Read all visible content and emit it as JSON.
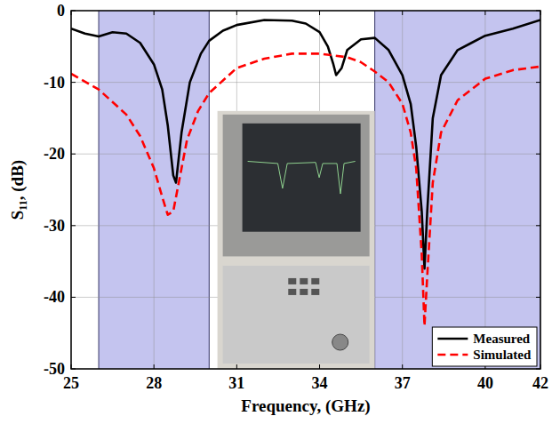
{
  "chart_data": {
    "type": "line",
    "x_label": "Frequency, (GHz)",
    "y_label": "S₁₁, (dB)",
    "xlim": [
      25,
      42
    ],
    "xticks": [
      25,
      28,
      31,
      34,
      37,
      40,
      42
    ],
    "ylim": [
      -50,
      0
    ],
    "yticks": [
      -50,
      -40,
      -30,
      -20,
      -10,
      0
    ],
    "grid": true,
    "legend": "lower right",
    "shaded_bands": [
      [
        26,
        30
      ],
      [
        36,
        42
      ]
    ],
    "series": [
      {
        "name": "Measured",
        "color": "#000000",
        "line_style": "solid",
        "x": [
          25,
          25.5,
          26,
          26.5,
          27,
          27.5,
          28,
          28.3,
          28.5,
          28.7,
          28.8,
          29,
          29.3,
          29.7,
          30,
          30.5,
          31,
          32,
          33,
          33.5,
          34,
          34.3,
          34.5,
          34.6,
          34.8,
          35,
          35.5,
          36,
          36.5,
          37,
          37.3,
          37.5,
          37.7,
          37.8,
          37.9,
          38.1,
          38.4,
          39,
          39.5,
          40,
          41,
          42
        ],
        "values": [
          -2.5,
          -3.2,
          -3.6,
          -3,
          -3.2,
          -4.5,
          -7.5,
          -11,
          -16,
          -23,
          -24,
          -17,
          -10,
          -6,
          -4.2,
          -2.8,
          -2,
          -1.3,
          -1.4,
          -1.8,
          -3,
          -5,
          -7.5,
          -9,
          -8,
          -5.5,
          -4,
          -3.8,
          -5.5,
          -9,
          -13,
          -19,
          -28,
          -36,
          -28,
          -15,
          -9,
          -5.5,
          -4.5,
          -3.5,
          -2.5,
          -1.3
        ]
      },
      {
        "name": "Simulated",
        "color": "#ff0000",
        "line_style": "dashed",
        "x": [
          25,
          26,
          27,
          27.5,
          28,
          28.3,
          28.5,
          28.7,
          28.9,
          29.2,
          29.6,
          30,
          31,
          32,
          33,
          34,
          35,
          35.5,
          36,
          36.5,
          37,
          37.3,
          37.5,
          37.7,
          37.8,
          37.9,
          38.1,
          38.4,
          39,
          40,
          41,
          42
        ],
        "values": [
          -8.8,
          -11,
          -14.5,
          -17.5,
          -22,
          -26,
          -28.5,
          -28,
          -24,
          -18,
          -14,
          -11.5,
          -8,
          -6.7,
          -6,
          -6,
          -6.5,
          -7.2,
          -8.5,
          -10,
          -13,
          -17,
          -22,
          -34,
          -44,
          -37,
          -24,
          -17,
          -12.5,
          -9.5,
          -8.3,
          -7.8
        ]
      }
    ]
  }
}
